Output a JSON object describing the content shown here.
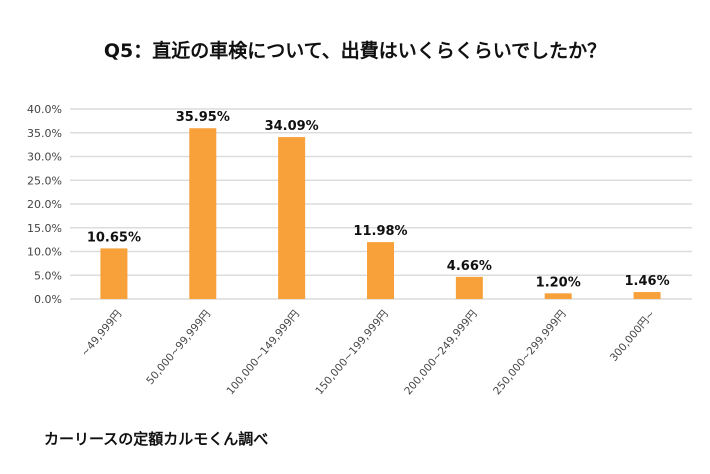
{
  "chart_data": {
    "type": "bar",
    "title": "Q5：直近の車検について、出費はいくらくらいでしたか？",
    "categories": [
      "~49,999円",
      "50,000~99,999円",
      "100,000~149,999円",
      "150,000~199,999円",
      "200,000~249,999円",
      "250,000~299,999円",
      "300,000円~"
    ],
    "values": [
      10.65,
      35.95,
      34.09,
      11.98,
      4.66,
      1.2,
      1.46
    ],
    "data_labels": [
      "10.65%",
      "35.95%",
      "34.09%",
      "11.98%",
      "4.66%",
      "1.20%",
      "1.46%"
    ],
    "y_ticks": [
      "0.0%",
      "5.0%",
      "10.0%",
      "15.0%",
      "20.0%",
      "25.0%",
      "30.0%",
      "35.0%",
      "40.0%"
    ],
    "ylim": [
      0,
      40
    ],
    "xlabel": "",
    "ylabel": "",
    "grid": true,
    "bar_color": "#F8A13A",
    "source": "カーリースの定額カルモくん調べ"
  }
}
